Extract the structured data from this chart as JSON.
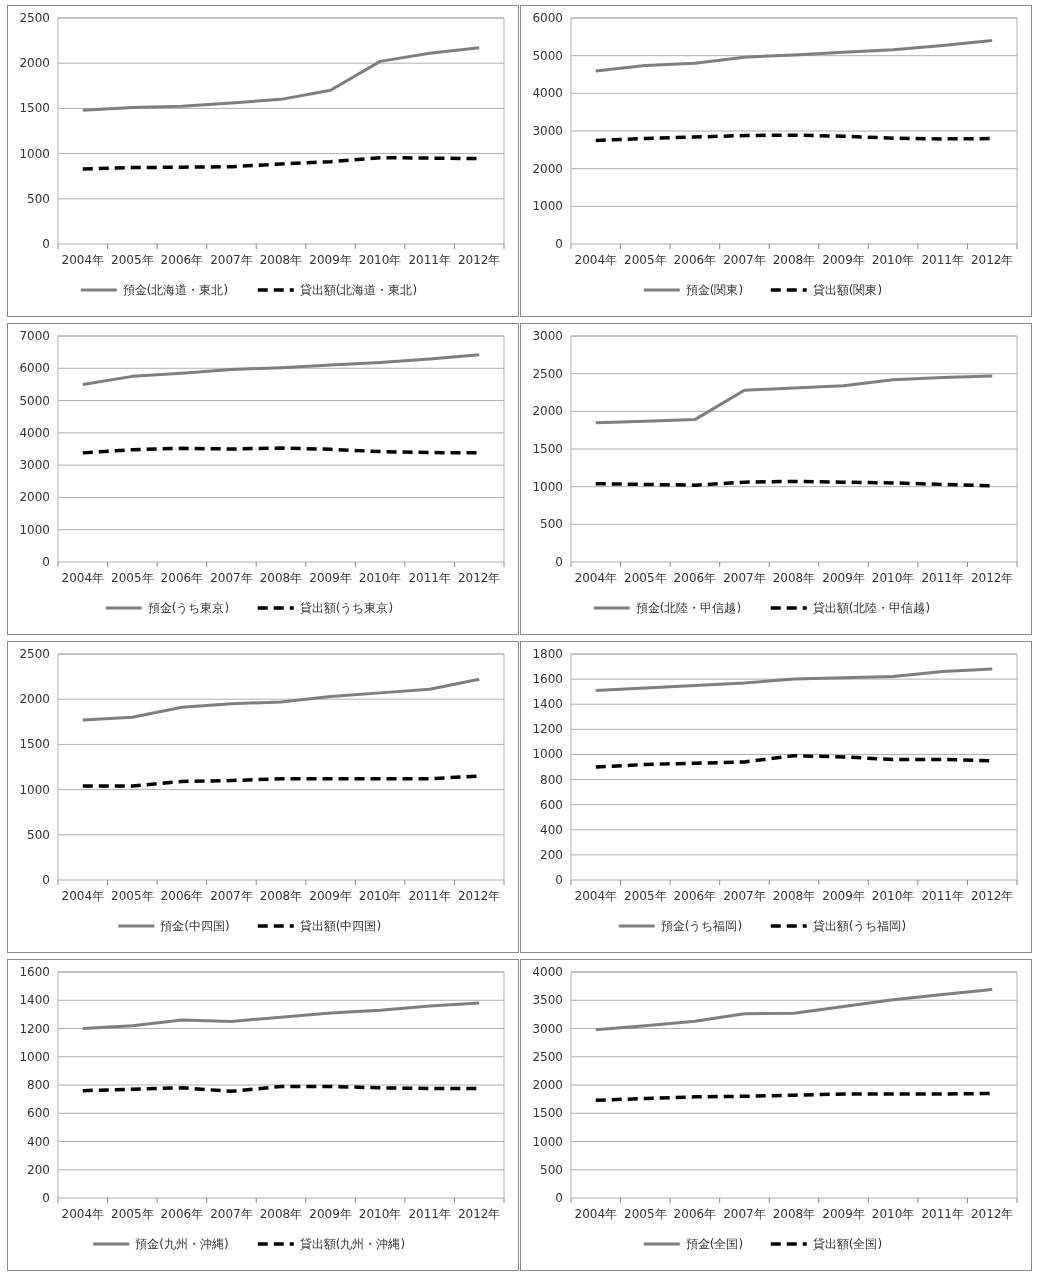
{
  "chart_data": [
    {
      "type": "line",
      "categories": [
        "2004年",
        "2005年",
        "2006年",
        "2007年",
        "2008年",
        "2009年",
        "2010年",
        "2011年",
        "2012年"
      ],
      "ylim": [
        0,
        2500
      ],
      "yticks": [
        0,
        500,
        1000,
        1500,
        2000,
        2500
      ],
      "grid": "y",
      "legend": "bottom",
      "series": [
        {
          "name": "預金(北海道・東北)",
          "color": "#7f7f7f",
          "line_style": "solid",
          "values": [
            1480,
            1510,
            1525,
            1560,
            1600,
            1700,
            2020,
            2110,
            2170
          ]
        },
        {
          "name": "貸出額(北海道・東北)",
          "color": "#000000",
          "line_style": "dashed",
          "values": [
            830,
            845,
            850,
            855,
            885,
            910,
            955,
            950,
            945
          ]
        }
      ]
    },
    {
      "type": "line",
      "categories": [
        "2004年",
        "2005年",
        "2006年",
        "2007年",
        "2008年",
        "2009年",
        "2010年",
        "2011年",
        "2012年"
      ],
      "ylim": [
        0,
        6000
      ],
      "yticks": [
        0,
        1000,
        2000,
        3000,
        4000,
        5000,
        6000
      ],
      "grid": "y",
      "legend": "bottom",
      "series": [
        {
          "name": "預金(関東)",
          "color": "#7f7f7f",
          "line_style": "solid",
          "values": [
            4590,
            4740,
            4800,
            4960,
            5020,
            5090,
            5160,
            5270,
            5400
          ]
        },
        {
          "name": "貸出額(関東)",
          "color": "#000000",
          "line_style": "dashed",
          "values": [
            2750,
            2800,
            2840,
            2880,
            2890,
            2860,
            2810,
            2790,
            2800
          ]
        }
      ]
    },
    {
      "type": "line",
      "categories": [
        "2004年",
        "2005年",
        "2006年",
        "2007年",
        "2008年",
        "2009年",
        "2010年",
        "2011年",
        "2012年"
      ],
      "ylim": [
        0,
        7000
      ],
      "yticks": [
        0,
        1000,
        2000,
        3000,
        4000,
        5000,
        6000,
        7000
      ],
      "grid": "y",
      "legend": "bottom",
      "series": [
        {
          "name": "預金(うち東京)",
          "color": "#7f7f7f",
          "line_style": "solid",
          "values": [
            5500,
            5750,
            5850,
            5960,
            6020,
            6100,
            6180,
            6290,
            6420
          ]
        },
        {
          "name": "貸出額(うち東京)",
          "color": "#000000",
          "line_style": "dashed",
          "values": [
            3380,
            3480,
            3520,
            3500,
            3530,
            3490,
            3420,
            3390,
            3380
          ]
        }
      ]
    },
    {
      "type": "line",
      "categories": [
        "2004年",
        "2005年",
        "2006年",
        "2007年",
        "2008年",
        "2009年",
        "2010年",
        "2011年",
        "2012年"
      ],
      "ylim": [
        0,
        3000
      ],
      "yticks": [
        0,
        500,
        1000,
        1500,
        2000,
        2500,
        3000
      ],
      "grid": "y",
      "legend": "bottom",
      "series": [
        {
          "name": "預金(北陸・甲信越)",
          "color": "#7f7f7f",
          "line_style": "solid",
          "values": [
            1850,
            1870,
            1890,
            2280,
            2310,
            2340,
            2420,
            2450,
            2470
          ]
        },
        {
          "name": "貸出額(北陸・甲信越)",
          "color": "#000000",
          "line_style": "dashed",
          "values": [
            1040,
            1030,
            1020,
            1060,
            1070,
            1060,
            1050,
            1030,
            1010
          ]
        }
      ]
    },
    {
      "type": "line",
      "categories": [
        "2004年",
        "2005年",
        "2006年",
        "2007年",
        "2008年",
        "2009年",
        "2010年",
        "2011年",
        "2012年"
      ],
      "ylim": [
        0,
        2500
      ],
      "yticks": [
        0,
        500,
        1000,
        1500,
        2000,
        2500
      ],
      "grid": "y",
      "legend": "bottom",
      "series": [
        {
          "name": "預金(中四国)",
          "color": "#7f7f7f",
          "line_style": "solid",
          "values": [
            1770,
            1800,
            1910,
            1950,
            1970,
            2030,
            2070,
            2110,
            2220
          ]
        },
        {
          "name": "貸出額(中四国)",
          "color": "#000000",
          "line_style": "dashed",
          "values": [
            1040,
            1040,
            1090,
            1100,
            1120,
            1120,
            1120,
            1120,
            1150
          ]
        }
      ]
    },
    {
      "type": "line",
      "categories": [
        "2004年",
        "2005年",
        "2006年",
        "2007年",
        "2008年",
        "2009年",
        "2010年",
        "2011年",
        "2012年"
      ],
      "ylim": [
        0,
        1800
      ],
      "yticks": [
        0,
        200,
        400,
        600,
        800,
        1000,
        1200,
        1400,
        1600,
        1800
      ],
      "grid": "y",
      "legend": "bottom",
      "series": [
        {
          "name": "預金(うち福岡)",
          "color": "#7f7f7f",
          "line_style": "solid",
          "values": [
            1510,
            1530,
            1550,
            1570,
            1600,
            1610,
            1620,
            1660,
            1680
          ]
        },
        {
          "name": "貸出額(うち福岡)",
          "color": "#000000",
          "line_style": "dashed",
          "values": [
            900,
            920,
            930,
            940,
            990,
            980,
            960,
            960,
            950
          ]
        }
      ]
    },
    {
      "type": "line",
      "categories": [
        "2004年",
        "2005年",
        "2006年",
        "2007年",
        "2008年",
        "2009年",
        "2010年",
        "2011年",
        "2012年"
      ],
      "ylim": [
        0,
        1600
      ],
      "yticks": [
        0,
        200,
        400,
        600,
        800,
        1000,
        1200,
        1400,
        1600
      ],
      "grid": "y",
      "legend": "bottom",
      "series": [
        {
          "name": "預金(九州・沖縄)",
          "color": "#7f7f7f",
          "line_style": "solid",
          "values": [
            1200,
            1220,
            1260,
            1250,
            1280,
            1310,
            1330,
            1360,
            1380
          ]
        },
        {
          "name": "貸出額(九州・沖縄)",
          "color": "#000000",
          "line_style": "dashed",
          "values": [
            760,
            770,
            780,
            755,
            790,
            790,
            780,
            775,
            775
          ]
        }
      ]
    },
    {
      "type": "line",
      "categories": [
        "2004年",
        "2005年",
        "2006年",
        "2007年",
        "2008年",
        "2009年",
        "2010年",
        "2011年",
        "2012年"
      ],
      "ylim": [
        0,
        4000
      ],
      "yticks": [
        0,
        500,
        1000,
        1500,
        2000,
        2500,
        3000,
        3500,
        4000
      ],
      "grid": "y",
      "legend": "bottom",
      "series": [
        {
          "name": "預金(全国)",
          "color": "#7f7f7f",
          "line_style": "solid",
          "values": [
            2980,
            3050,
            3130,
            3260,
            3270,
            3390,
            3510,
            3600,
            3690
          ]
        },
        {
          "name": "貸出額(全国)",
          "color": "#000000",
          "line_style": "dashed",
          "values": [
            1730,
            1760,
            1790,
            1800,
            1820,
            1840,
            1840,
            1840,
            1850
          ]
        }
      ]
    }
  ]
}
